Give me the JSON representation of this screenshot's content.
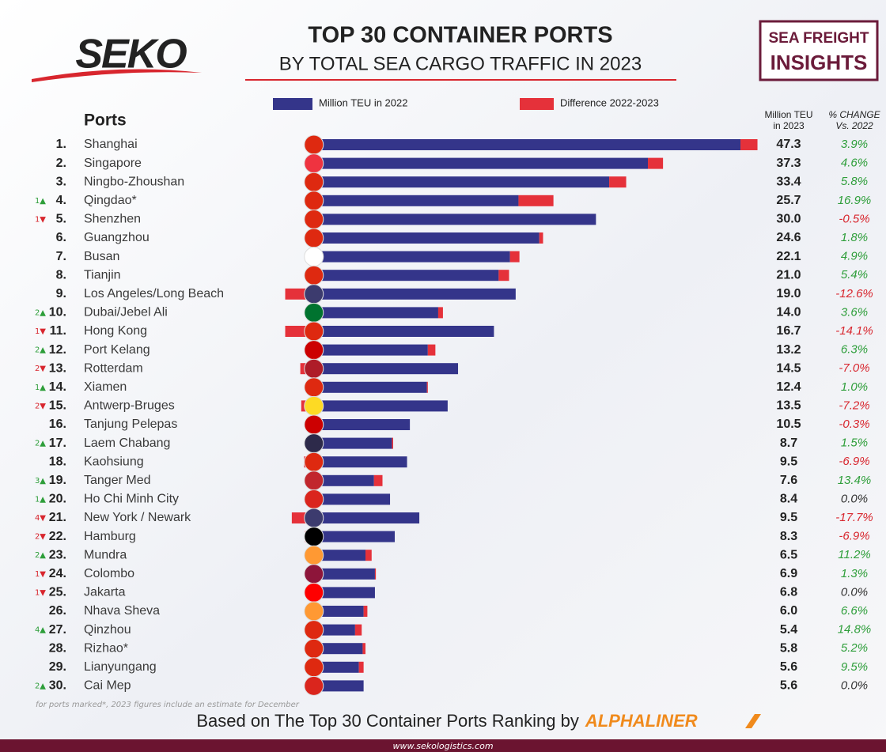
{
  "chart_data": {
    "type": "bar",
    "brand": "SEKO",
    "title": "TOP 30 CONTAINER PORTS",
    "subtitle": "BY TOTAL SEA CARGO TRAFFIC IN 2023",
    "badge": [
      "SEA FREIGHT",
      "INSIGHTS"
    ],
    "y_header": "Ports",
    "ranks": [
      "1.",
      "2.",
      "3.",
      "4.",
      "5.",
      "6.",
      "7.",
      "8.",
      "9.",
      "10.",
      "11.",
      "12.",
      "13.",
      "14.",
      "15.",
      "16.",
      "17.",
      "18.",
      "19.",
      "20.",
      "21.",
      "22.",
      "23.",
      "24.",
      "25.",
      "26.",
      "27.",
      "28.",
      "29.",
      "30."
    ],
    "rank_changes": [
      null,
      null,
      null,
      "1▲",
      "1▼",
      null,
      null,
      null,
      null,
      "2▲",
      "1▼",
      "2▲",
      "2▼",
      "1▲",
      "2▼",
      null,
      "2▲",
      null,
      "3▲",
      "1▲",
      "4▼",
      "2▼",
      "2▲",
      "1▼",
      "1▼",
      null,
      "4▲",
      null,
      null,
      "2▲"
    ],
    "categories": [
      "Shanghai",
      "Singapore",
      "Ningbo-Zhoushan",
      "Qingdao*",
      "Shenzhen",
      "Guangzhou",
      "Busan",
      "Tianjin",
      "Los Angeles/Long Beach",
      "Dubai/Jebel Ali",
      "Hong Kong",
      "Port Kelang",
      "Rotterdam",
      "Xiamen",
      "Antwerp-Bruges",
      "Tanjung Pelepas",
      "Laem Chabang",
      "Kaohsiung",
      "Tanger Med",
      "Ho Chi Minh City",
      "New York / Newark",
      "Hamburg",
      "Mundra",
      "Colombo",
      "Jakarta",
      "Nhava Sheva",
      "Qinzhou",
      "Rizhao*",
      "Lianyungang",
      "Cai Mep"
    ],
    "series": [
      {
        "name": "Million TEU in 2022",
        "color": "#34358a",
        "values": [
          45.5,
          35.7,
          31.6,
          22.0,
          30.2,
          24.2,
          21.1,
          19.9,
          21.7,
          13.5,
          19.4,
          12.4,
          15.6,
          12.3,
          14.5,
          10.5,
          8.6,
          10.2,
          6.7,
          8.4,
          11.5,
          8.9,
          5.8,
          6.8,
          6.8,
          5.6,
          4.7,
          5.5,
          5.1,
          5.6
        ]
      },
      {
        "name": "Difference 2022-2023",
        "color": "#e5313a",
        "values": [
          1.8,
          1.6,
          1.8,
          3.7,
          -0.2,
          0.4,
          1.0,
          1.1,
          -2.7,
          0.5,
          -2.7,
          0.8,
          -1.1,
          0.1,
          -1.0,
          -0.03,
          0.13,
          -0.7,
          0.9,
          0.0,
          -2.0,
          -0.6,
          0.65,
          0.1,
          0.0,
          0.4,
          0.7,
          0.3,
          0.5,
          0.0
        ]
      }
    ],
    "xlim": [
      -4,
      46
    ],
    "teu_2023": {
      "header": [
        "Million TEU",
        "in 2023"
      ],
      "values": [
        47.3,
        37.3,
        33.4,
        25.7,
        30.0,
        24.6,
        22.1,
        21.0,
        19.0,
        14.0,
        16.7,
        13.2,
        14.5,
        12.4,
        13.5,
        10.5,
        8.7,
        9.5,
        7.6,
        8.4,
        9.5,
        8.3,
        6.5,
        6.9,
        6.8,
        6.0,
        5.4,
        5.8,
        5.6,
        5.6
      ],
      "value_labels": [
        "47.3",
        "37.3",
        "33.4",
        "25.7",
        "30.0",
        "24.6",
        "22.1",
        "21.0",
        "19.0",
        "14.0",
        "16.7",
        "13.2",
        "14.5",
        "12.4",
        "13.5",
        "10.5",
        "8.7",
        "9.5",
        "7.6",
        "8.4",
        "9.5",
        "8.3",
        "6.5",
        "6.9",
        "6.8",
        "6.0",
        "5.4",
        "5.8",
        "5.6",
        "5.6"
      ]
    },
    "pct_change": {
      "header": [
        "% CHANGE",
        "Vs. 2022"
      ],
      "values": [
        3.9,
        4.6,
        5.8,
        16.9,
        -0.5,
        1.8,
        4.9,
        5.4,
        -12.6,
        3.6,
        -14.1,
        6.3,
        -7.0,
        1.0,
        -7.2,
        -0.3,
        1.5,
        -6.9,
        13.4,
        0.0,
        -17.7,
        -6.9,
        11.2,
        1.3,
        0.0,
        6.6,
        14.8,
        5.2,
        9.5,
        0.0
      ],
      "value_labels": [
        "3.9%",
        "4.6%",
        "5.8%",
        "16.9%",
        "-0.5%",
        "1.8%",
        "4.9%",
        "5.4%",
        "-12.6%",
        "3.6%",
        "-14.1%",
        "6.3%",
        "-7.0%",
        "1.0%",
        "-7.2%",
        "-0.3%",
        "1.5%",
        "-6.9%",
        "13.4%",
        "0.0%",
        "-17.7%",
        "-6.9%",
        "11.2%",
        "1.3%",
        "0.0%",
        "6.6%",
        "14.8%",
        "5.2%",
        "9.5%",
        "0.0%"
      ]
    },
    "footnote": "for ports marked*, 2023 figures include an estimate for December",
    "source_text": "Based on The Top 30 Container Ports Ranking by",
    "source_brand": "ALPHALINER",
    "url": "www.sekologistics.com"
  }
}
